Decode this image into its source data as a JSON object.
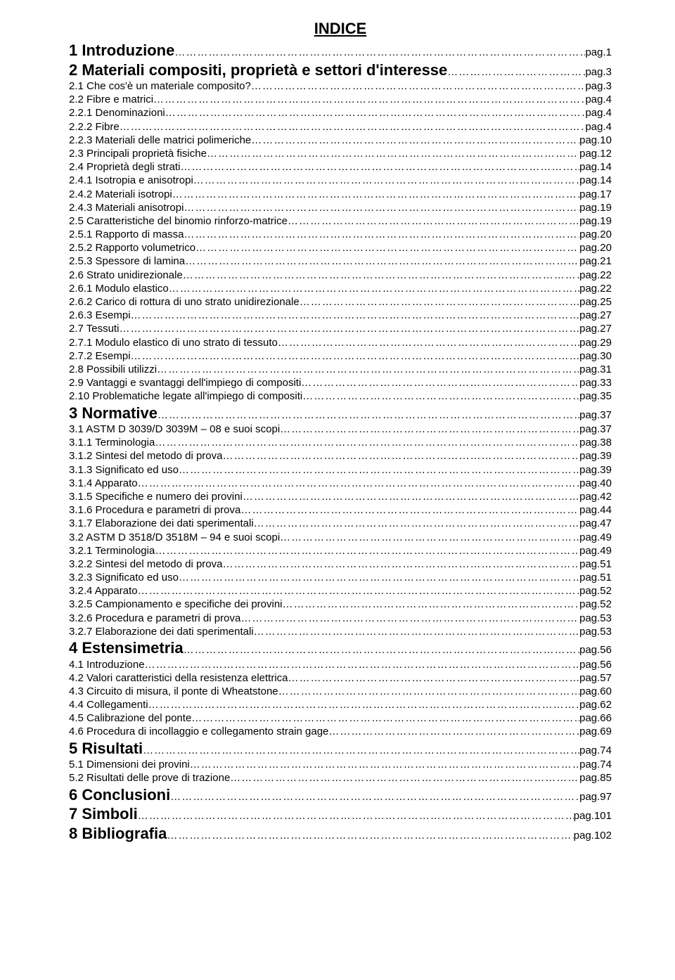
{
  "title": "INDICE",
  "font": {
    "chapter_size_pt": 22,
    "sub_size_pt": 15,
    "weight_chapter": "bold",
    "weight_sub": "normal",
    "color": "#000000",
    "background": "#ffffff"
  },
  "entries": [
    {
      "level": "chapter",
      "label": "1 Introduzione",
      "page": "pag.1"
    },
    {
      "level": "chapter",
      "label": "2 Materiali compositi, proprietà e settori d'interesse",
      "page": "pag.3"
    },
    {
      "level": "sub",
      "label": "2.1 Che cos'è un materiale composito?",
      "page": "pag.3"
    },
    {
      "level": "sub",
      "label": "2.2 Fibre e matrici",
      "page": "pag.4"
    },
    {
      "level": "sub",
      "label": "2.2.1 Denominazioni",
      "page": "pag.4"
    },
    {
      "level": "sub",
      "label": "2.2.2 Fibre",
      "page": "pag.4"
    },
    {
      "level": "sub",
      "label": "2.2.3 Materiali delle matrici polimeriche",
      "page": "pag.10"
    },
    {
      "level": "sub",
      "label": "2.3 Principali proprietà fisiche",
      "page": "pag.12"
    },
    {
      "level": "sub",
      "label": "2.4 Proprietà degli strati",
      "page": "pag.14"
    },
    {
      "level": "sub",
      "label": "2.4.1 Isotropia e anisotropi",
      "page": "pag.14"
    },
    {
      "level": "sub",
      "label": "2.4.2 Materiali isotropi",
      "page": "pag.17"
    },
    {
      "level": "sub",
      "label": "2.4.3 Materiali anisotropi",
      "page": "pag.19"
    },
    {
      "level": "sub",
      "label": "2.5 Caratteristiche del binomio rinforzo-matrice",
      "page": "pag.19"
    },
    {
      "level": "sub",
      "label": "2.5.1 Rapporto di massa",
      "page": "pag.20"
    },
    {
      "level": "sub",
      "label": "2.5.2 Rapporto volumetrico",
      "page": "pag.20"
    },
    {
      "level": "sub",
      "label": "2.5.3 Spessore di lamina",
      "page": "pag.21"
    },
    {
      "level": "sub",
      "label": "2.6 Strato unidirezionale",
      "page": "pag.22"
    },
    {
      "level": "sub",
      "label": "2.6.1 Modulo elastico",
      "page": "pag.22"
    },
    {
      "level": "sub",
      "label": "2.6.2 Carico di rottura di uno strato unidirezionale",
      "page": "pag.25"
    },
    {
      "level": "sub",
      "label": "2.6.3 Esempi",
      "page": "pag.27"
    },
    {
      "level": "sub",
      "label": "2.7 Tessuti",
      "page": "pag.27"
    },
    {
      "level": "sub",
      "label": "2.7.1 Modulo elastico di uno strato di tessuto",
      "page": "pag.29"
    },
    {
      "level": "sub",
      "label": "2.7.2 Esempi",
      "page": "pag.30"
    },
    {
      "level": "sub",
      "label": "2.8 Possibili utilizzi",
      "page": "pag.31"
    },
    {
      "level": "sub",
      "label": "2.9 Vantaggi e svantaggi dell'impiego di compositi",
      "page": "pag.33"
    },
    {
      "level": "sub",
      "label": "2.10 Problematiche legate all'impiego di compositi",
      "page": "pag.35"
    },
    {
      "level": "chapter",
      "label": "3 Normative",
      "page": "pag.37"
    },
    {
      "level": "sub",
      "label": "3.1 ASTM D 3039/D 3039M – 08 e suoi scopi",
      "page": "pag.37"
    },
    {
      "level": "sub",
      "label": "3.1.1 Terminologia",
      "page": "pag.38"
    },
    {
      "level": "sub",
      "label": "3.1.2 Sintesi del metodo di prova",
      "page": "pag.39"
    },
    {
      "level": "sub",
      "label": "3.1.3 Significato ed uso",
      "page": "pag.39"
    },
    {
      "level": "sub",
      "label": "3.1.4 Apparato",
      "page": "pag.40"
    },
    {
      "level": "sub",
      "label": "3.1.5 Specifiche e numero dei provini",
      "page": "pag.42"
    },
    {
      "level": "sub",
      "label": "3.1.6 Procedura e parametri di prova",
      "page": "pag.44"
    },
    {
      "level": "sub",
      "label": "3.1.7 Elaborazione dei dati sperimentali",
      "page": "pag.47"
    },
    {
      "level": "sub",
      "label": "3.2 ASTM D 3518/D 3518M – 94 e suoi scopi",
      "page": "pag.49"
    },
    {
      "level": "sub",
      "label": "3.2.1 Terminologia",
      "page": "pag.49"
    },
    {
      "level": "sub",
      "label": "3.2.2 Sintesi del metodo di prova",
      "page": "pag.51"
    },
    {
      "level": "sub",
      "label": "3.2.3 Significato ed uso",
      "page": "pag.51"
    },
    {
      "level": "sub",
      "label": "3.2.4 Apparato",
      "page": "pag.52"
    },
    {
      "level": "sub",
      "label": "3.2.5 Campionamento e specifiche dei provini",
      "page": "pag.52"
    },
    {
      "level": "sub",
      "label": "3.2.6 Procedura e parametri di prova",
      "page": "pag.53"
    },
    {
      "level": "sub",
      "label": "3.2.7 Elaborazione dei dati sperimentali",
      "page": "pag.53"
    },
    {
      "level": "chapter",
      "label": "4 Estensimetria",
      "page": "pag.56"
    },
    {
      "level": "sub",
      "label": "4.1 Introduzione",
      "page": "pag.56"
    },
    {
      "level": "sub",
      "label": "4.2  Valori caratteristici della resistenza elettrica",
      "page": "pag.57"
    },
    {
      "level": "sub",
      "label": "4.3 Circuito di misura, il ponte di Wheatstone",
      "page": "pag.60"
    },
    {
      "level": "sub",
      "label": "4.4 Collegamenti",
      "page": "pag.62"
    },
    {
      "level": "sub",
      "label": "4.5 Calibrazione del ponte",
      "page": "pag.66"
    },
    {
      "level": "sub",
      "label": "4.6 Procedura di incollaggio e collegamento strain gage",
      "page": "pag.69"
    },
    {
      "level": "chapter",
      "label": "5 Risultati",
      "page": "pag.74"
    },
    {
      "level": "sub",
      "label": "5.1 Dimensioni dei provini",
      "page": "pag.74"
    },
    {
      "level": "sub",
      "label": "5.2 Risultati delle prove di trazione",
      "page": "pag.85"
    },
    {
      "level": "chapter",
      "label": "6 Conclusioni",
      "page": "pag.97"
    },
    {
      "level": "chapter",
      "label": "7 Simboli",
      "page": "pag.101"
    },
    {
      "level": "chapter",
      "label": "8 Bibliografia",
      "page": "pag.102"
    }
  ]
}
